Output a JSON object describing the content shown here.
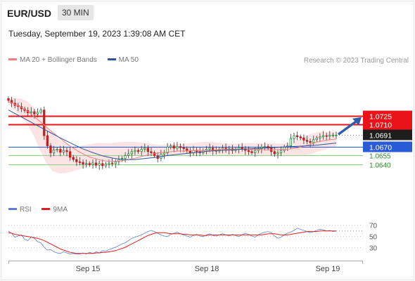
{
  "header": {
    "pair": "EUR/USD",
    "timeframe": "30 MIN",
    "datetime": "Tuesday, September 19, 2023 1:39:08 AM CET"
  },
  "legend_main": [
    {
      "label": "MA 20 + Bollinger Bands",
      "color": "#f08080"
    },
    {
      "label": "MA 50",
      "color": "#2e5597"
    }
  ],
  "credit": "Research © 2023 Trading Central",
  "legend_rsi": [
    {
      "label": "RSI",
      "color": "#5b7fd6"
    },
    {
      "label": "9MA",
      "color": "#e02020"
    }
  ],
  "colors": {
    "resistance": "#e8141a",
    "pivot": "#2a5bd7",
    "support": "#8dd18d",
    "bollinger": "#fde4e4",
    "ma20": "#f08080",
    "ma50": "#2e5597",
    "candle_up": "#2a8a3a",
    "candle_down": "#c42020",
    "arrow": "#2e5ea8",
    "last": "#1e1e1e"
  },
  "chart_data": [
    {
      "type": "candlestick",
      "x_ticks": [
        "Sep 15",
        "Sep 18",
        "Sep 19"
      ],
      "ylim": [
        1.0605,
        1.079
      ],
      "levels": [
        {
          "label": "1.0725",
          "value": 1.0725,
          "kind": "resistance"
        },
        {
          "label": "1.0710",
          "value": 1.071,
          "kind": "resistance"
        },
        {
          "label": "1.0691",
          "value": 1.0691,
          "kind": "last"
        },
        {
          "label": "1.0670",
          "value": 1.067,
          "kind": "pivot"
        },
        {
          "label": "1.0655",
          "value": 1.0655,
          "kind": "support"
        },
        {
          "label": "1.0640",
          "value": 1.064,
          "kind": "support"
        }
      ],
      "close": [
        1.0752,
        1.0747,
        1.0743,
        1.0741,
        1.0737,
        1.0734,
        1.073,
        1.0732,
        1.0728,
        1.0731,
        1.0735,
        1.069,
        1.0672,
        1.066,
        1.0665,
        1.0666,
        1.0661,
        1.0664,
        1.0662,
        1.0652,
        1.0648,
        1.0644,
        1.0643,
        1.064,
        1.0641,
        1.0639,
        1.0642,
        1.0638,
        1.0641,
        1.0637,
        1.064,
        1.0642,
        1.0641,
        1.0644,
        1.0648,
        1.065,
        1.0655,
        1.0658,
        1.0662,
        1.0664,
        1.0662,
        1.0666,
        1.0668,
        1.0662,
        1.066,
        1.0655,
        1.065,
        1.0657,
        1.066,
        1.067,
        1.0672,
        1.0668,
        1.0671,
        1.0669,
        1.0667,
        1.0663,
        1.066,
        1.0664,
        1.0662,
        1.066,
        1.0664,
        1.0666,
        1.0668,
        1.0664,
        1.0663,
        1.0666,
        1.0668,
        1.0665,
        1.0667,
        1.0664,
        1.0666,
        1.0669,
        1.0667,
        1.0664,
        1.0662,
        1.066,
        1.0664,
        1.0667,
        1.067,
        1.0671,
        1.0668,
        1.0662,
        1.0658,
        1.066,
        1.0664,
        1.067,
        1.0672,
        1.0685,
        1.069,
        1.0688,
        1.0686,
        1.0682,
        1.068,
        1.0678,
        1.0683,
        1.0686,
        1.0688,
        1.069,
        1.0689,
        1.0691,
        1.0691,
        1.0691
      ],
      "ma20": [
        1.075,
        1.0745,
        1.074,
        1.0733,
        1.0724,
        1.0715,
        1.0705,
        1.0696,
        1.0687,
        1.0678,
        1.067,
        1.0663,
        1.0657,
        1.0652,
        1.0649,
        1.0646,
        1.0645,
        1.0645,
        1.0646,
        1.0648,
        1.065,
        1.0653,
        1.0656,
        1.0658,
        1.066,
        1.0661,
        1.0662,
        1.0663,
        1.0663,
        1.0664,
        1.0664,
        1.0664,
        1.0664,
        1.0665,
        1.0666,
        1.0666,
        1.0666,
        1.0666,
        1.0666,
        1.0666,
        1.0666,
        1.0665,
        1.0665,
        1.0666,
        1.0666,
        1.0667,
        1.0669,
        1.0672,
        1.0675,
        1.0679,
        1.0681,
        1.0683,
        1.0684
      ],
      "ma50": [
        1.0735,
        1.0725,
        1.0715,
        1.0705,
        1.0695,
        1.0685,
        1.0676,
        1.0667,
        1.066,
        1.0654,
        1.065,
        1.0648,
        1.0648,
        1.065,
        1.0652,
        1.0655,
        1.0657,
        1.0659,
        1.0661,
        1.0663,
        1.0664,
        1.0665,
        1.0666,
        1.0667,
        1.0668,
        1.0669,
        1.067,
        1.0671,
        1.0672,
        1.0673,
        1.0675,
        1.0677
      ],
      "bb_upper": [
        1.0755,
        1.0756,
        1.0755,
        1.075,
        1.074,
        1.0725,
        1.0708,
        1.0694,
        1.0684,
        1.0676,
        1.0672,
        1.0672,
        1.0673,
        1.0675,
        1.0677,
        1.0677,
        1.0677,
        1.0678,
        1.0679,
        1.0679,
        1.0679,
        1.0678,
        1.0677,
        1.0675,
        1.0674,
        1.0674,
        1.0675,
        1.0676,
        1.0676,
        1.0677,
        1.0678,
        1.0679,
        1.0679,
        1.0678,
        1.0677,
        1.0676,
        1.0676,
        1.0676,
        1.0677,
        1.0677,
        1.0677,
        1.0677,
        1.0677,
        1.0676,
        1.0676,
        1.0677,
        1.0683,
        1.0689,
        1.0693,
        1.0696,
        1.0697,
        1.0697,
        1.0696
      ],
      "bb_lower": [
        1.0745,
        1.0734,
        1.0725,
        1.071,
        1.069,
        1.0665,
        1.0642,
        1.0628,
        1.0624,
        1.0624,
        1.0627,
        1.063,
        1.0634,
        1.0638,
        1.0641,
        1.0644,
        1.0647,
        1.065,
        1.0652,
        1.0654,
        1.0655,
        1.0656,
        1.0656,
        1.0656,
        1.0656,
        1.0656,
        1.0656,
        1.0656,
        1.0656,
        1.0656,
        1.0656,
        1.0656,
        1.0656,
        1.0656,
        1.0656,
        1.0656,
        1.0656,
        1.0656,
        1.0655,
        1.0655,
        1.0655,
        1.0654,
        1.0654,
        1.0654,
        1.0654,
        1.0654,
        1.0654,
        1.0655,
        1.0657,
        1.0662,
        1.0665,
        1.0668,
        1.067
      ],
      "forecast": {
        "from": 1.0691,
        "to": 1.0725
      }
    },
    {
      "type": "line",
      "name": "RSI",
      "yticks": [
        70,
        50,
        30
      ],
      "ylim": [
        10,
        80
      ],
      "rsi": [
        59,
        55,
        48,
        50,
        52,
        44,
        42,
        48,
        46,
        40,
        38,
        30,
        25,
        26,
        22,
        20,
        19,
        22,
        20,
        18,
        19,
        18,
        18,
        20,
        18,
        21,
        19,
        22,
        20,
        24,
        23,
        26,
        28,
        30,
        33,
        36,
        38,
        42,
        46,
        48,
        50,
        52,
        55,
        58,
        60,
        58,
        55,
        52,
        50,
        49,
        53,
        55,
        57,
        54,
        52,
        50,
        48,
        51,
        53,
        50,
        49,
        52,
        54,
        51,
        50,
        52,
        54,
        52,
        50,
        53,
        51,
        49,
        52,
        55,
        53,
        50,
        48,
        52,
        55,
        57,
        58,
        56,
        50,
        46,
        48,
        52,
        55,
        57,
        60,
        64,
        62,
        60,
        58,
        56,
        58,
        60,
        62,
        61,
        59,
        60,
        58,
        59
      ],
      "ma9": [
        56,
        55,
        53,
        52,
        51,
        50,
        49,
        48,
        47,
        46,
        44,
        42,
        39,
        36,
        33,
        30,
        27,
        25,
        23,
        21,
        20,
        19,
        19,
        19,
        19,
        19,
        19,
        20,
        20,
        21,
        21,
        22,
        23,
        24,
        26,
        28,
        30,
        33,
        36,
        39,
        42,
        45,
        48,
        51,
        53,
        55,
        56,
        56,
        56,
        55,
        54,
        54,
        54,
        54,
        53,
        53,
        52,
        52,
        52,
        52,
        51,
        51,
        52,
        52,
        52,
        52,
        52,
        52,
        52,
        52,
        52,
        52,
        52,
        52,
        52,
        52,
        52,
        52,
        52,
        53,
        54,
        54,
        54,
        53,
        52,
        52,
        52,
        53,
        54,
        55,
        56,
        57,
        58,
        58,
        58,
        58,
        59,
        59,
        59,
        59,
        59,
        59
      ]
    }
  ]
}
